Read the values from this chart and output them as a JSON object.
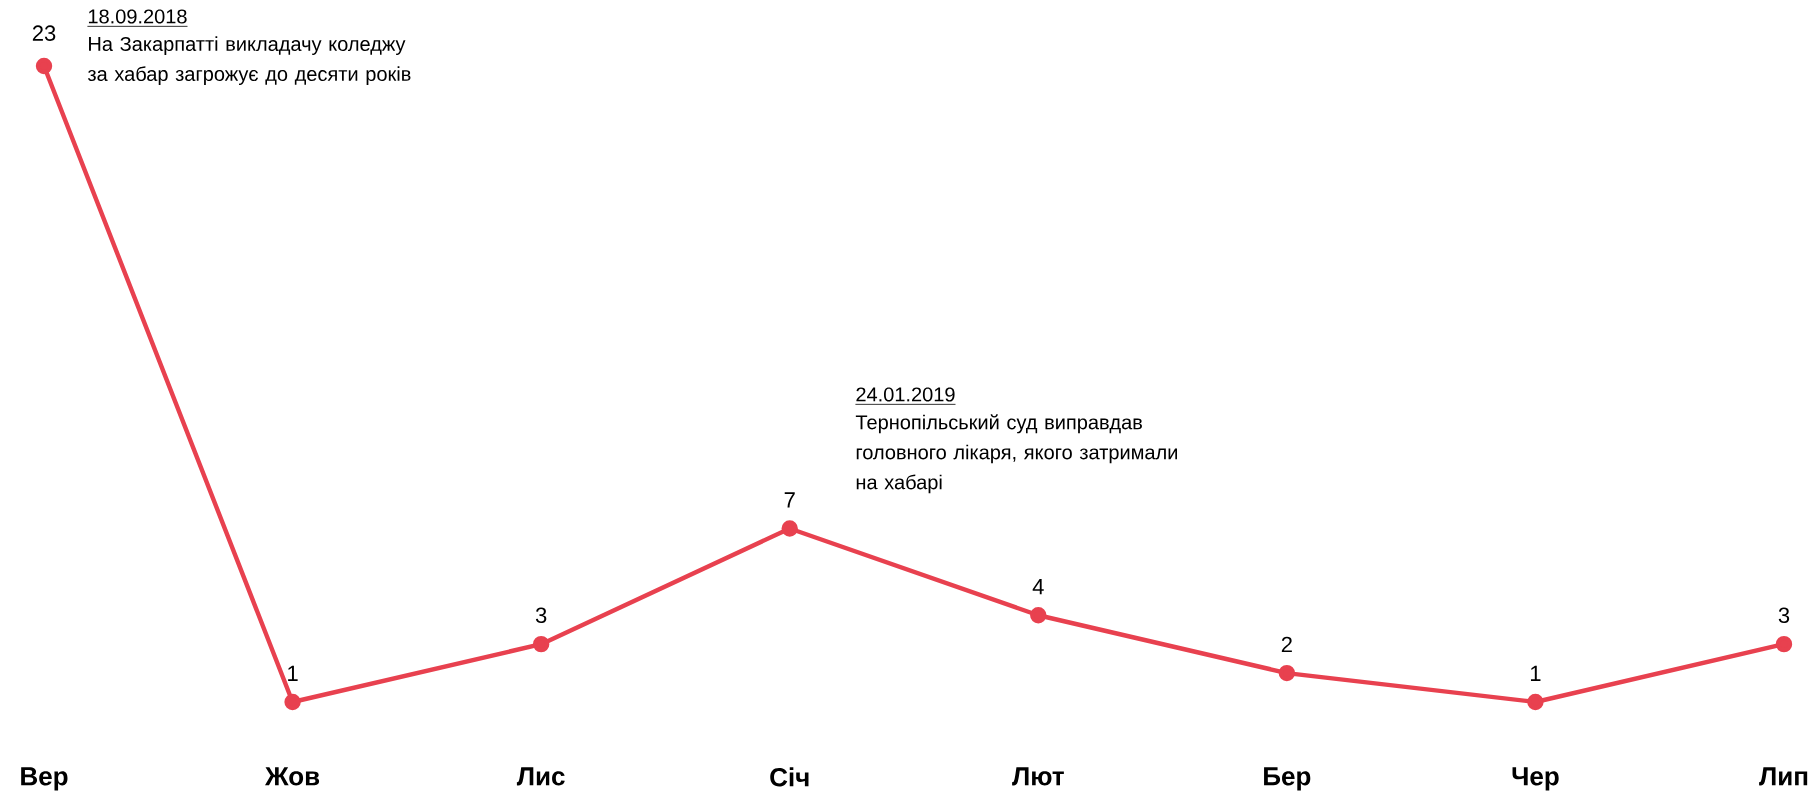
{
  "chart_data": {
    "type": "line",
    "categories": [
      "Вер",
      "Жов",
      "Лис",
      "Січ",
      "Лют",
      "Бер",
      "Чер",
      "Лип"
    ],
    "values": [
      23,
      1,
      3,
      7,
      4,
      2,
      1,
      3
    ],
    "color": "#e8414f",
    "marker": "circle",
    "data_labels": true,
    "annotations": [
      "18.09.2018",
      "На Закарпатті викладачу коледжу за хабар загрожує до десяти років",
      "24.01.2019",
      "Тернопільський суд виправдав головного лікаря, якого затримали на хабарі"
    ]
  }
}
